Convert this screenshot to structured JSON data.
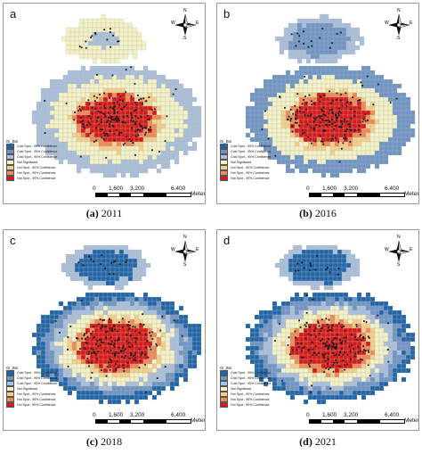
{
  "panels": [
    {
      "letter": "a",
      "caption_label": "(a)",
      "caption_year": "2011"
    },
    {
      "letter": "b",
      "caption_label": "(b)",
      "caption_year": "2016"
    },
    {
      "letter": "c",
      "caption_label": "(c)",
      "caption_year": "2018"
    },
    {
      "letter": "d",
      "caption_label": "(d)",
      "caption_year": "2021"
    }
  ],
  "legend": {
    "title": "Gi_Bin",
    "items": [
      {
        "label": "Cold Spot - 99% Confidence",
        "color": "#2166ac"
      },
      {
        "label": "Cold Spot - 95% Confidence",
        "color": "#6f95c8"
      },
      {
        "label": "Cold Spot - 90% Confidence",
        "color": "#a9bfdd"
      },
      {
        "label": "Not Significant",
        "color": "#f3f1c7"
      },
      {
        "label": "Hot Spot - 90% Confidence",
        "color": "#f2cf8f"
      },
      {
        "label": "Hot Spot - 95% Confidence",
        "color": "#ee8a5a"
      },
      {
        "label": "Hot Spot - 99% Confidence",
        "color": "#d7191c"
      }
    ]
  },
  "compass": {
    "n": "N",
    "s": "S",
    "e": "E",
    "w": "W"
  },
  "scale": {
    "ticks": [
      "0",
      "1,600",
      "3,200",
      "6,400"
    ],
    "unit": "Meters"
  }
}
